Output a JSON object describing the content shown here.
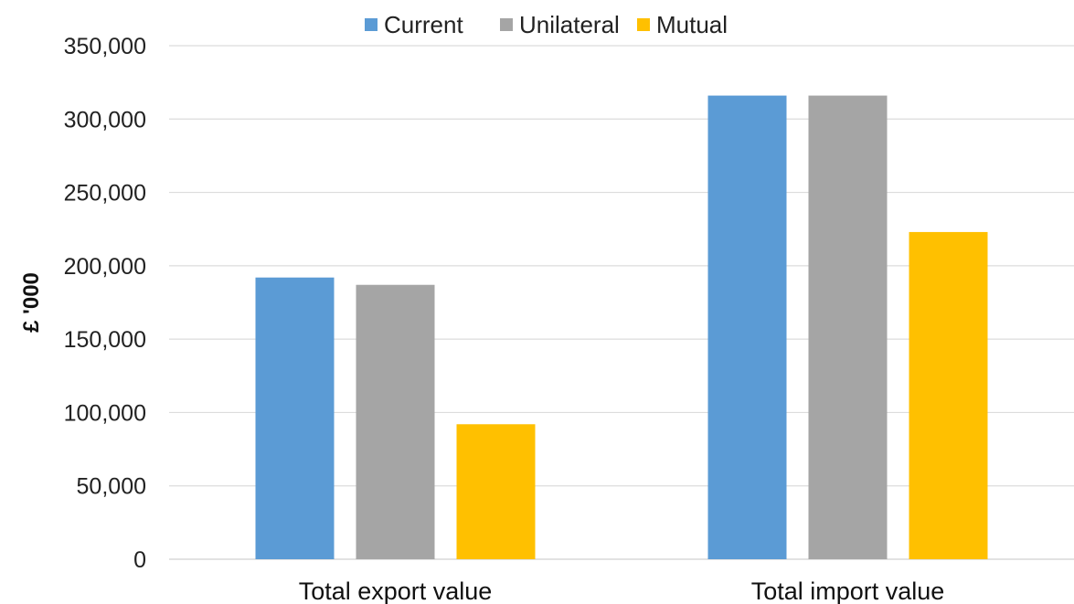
{
  "chart_data": {
    "type": "bar",
    "title": "",
    "xlabel": "",
    "ylabel": "£ '000",
    "categories": [
      "Total export value",
      "Total import value"
    ],
    "series": [
      {
        "name": "Current",
        "color": "#5b9bd5",
        "values": [
          192000,
          316000
        ]
      },
      {
        "name": "Unilateral",
        "color": "#a5a5a5",
        "values": [
          187000,
          316000
        ]
      },
      {
        "name": "Mutual",
        "color": "#ffc000",
        "values": [
          92000,
          223000
        ]
      }
    ],
    "ylim": [
      0,
      350000
    ],
    "yticks": [
      "0",
      "50,000",
      "100,000",
      "150,000",
      "200,000",
      "250,000",
      "300,000",
      "350,000"
    ],
    "grid": true,
    "legend_position": "top"
  }
}
